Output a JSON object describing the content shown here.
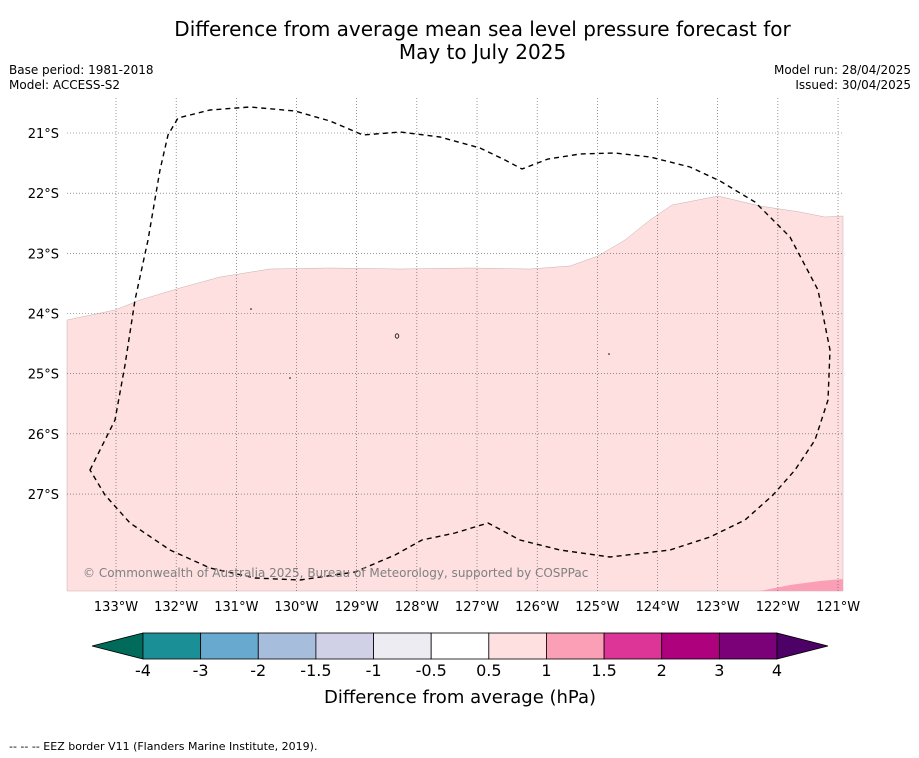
{
  "title": "Difference from average mean sea level pressure forecast for",
  "subtitle": "May to July 2025",
  "meta": {
    "base_period": "Base period: 1981-2018",
    "model": "Model: ACCESS-S2",
    "model_run": "Model run: 28/04/2025",
    "issued": "Issued: 30/04/2025"
  },
  "copyright": "© Commonwealth of Australia 2025, Bureau of Meteorology, supported by COSPPac",
  "footer": "-- -- -- EEZ border V11 (Flanders Marine Institute, 2019).",
  "colorbar": {
    "label": "Difference from average (hPa)",
    "tick_labels": [
      "-4",
      "-3",
      "-2",
      "-1.5",
      "-1",
      "-0.5",
      "0.5",
      "1",
      "1.5",
      "2",
      "3",
      "4"
    ],
    "colors": [
      "#1a8f96",
      "#67a9cf",
      "#a6bddb",
      "#d0d1e6",
      "#ececf2",
      "#ffffff",
      "#fde0df",
      "#fa9fb5",
      "#dd3497",
      "#ae017e",
      "#7a0177"
    ],
    "under_color": "#006b5a",
    "over_color": "#4d0066"
  },
  "chart_data": {
    "type": "map",
    "lon_ticks": [
      "133°W",
      "132°W",
      "131°W",
      "130°W",
      "129°W",
      "128°W",
      "127°W",
      "126°W",
      "125°W",
      "124°W",
      "123°W",
      "122°W",
      "121°W"
    ],
    "lat_ticks": [
      "21°S",
      "22°S",
      "23°S",
      "24°S",
      "25°S",
      "26°S",
      "27°S"
    ],
    "extent": {
      "lon": [
        -133.8,
        -121.05
      ],
      "lat": [
        -28.6,
        -20.6
      ]
    },
    "grid": true,
    "fill_regions": [
      {
        "range": "0.5 to 1",
        "color": "#fde0df"
      },
      {
        "range": "1 to 1.5",
        "color": "#fa9fb5"
      }
    ],
    "eez_border": {
      "style": "dashed",
      "color": "#000000"
    }
  }
}
